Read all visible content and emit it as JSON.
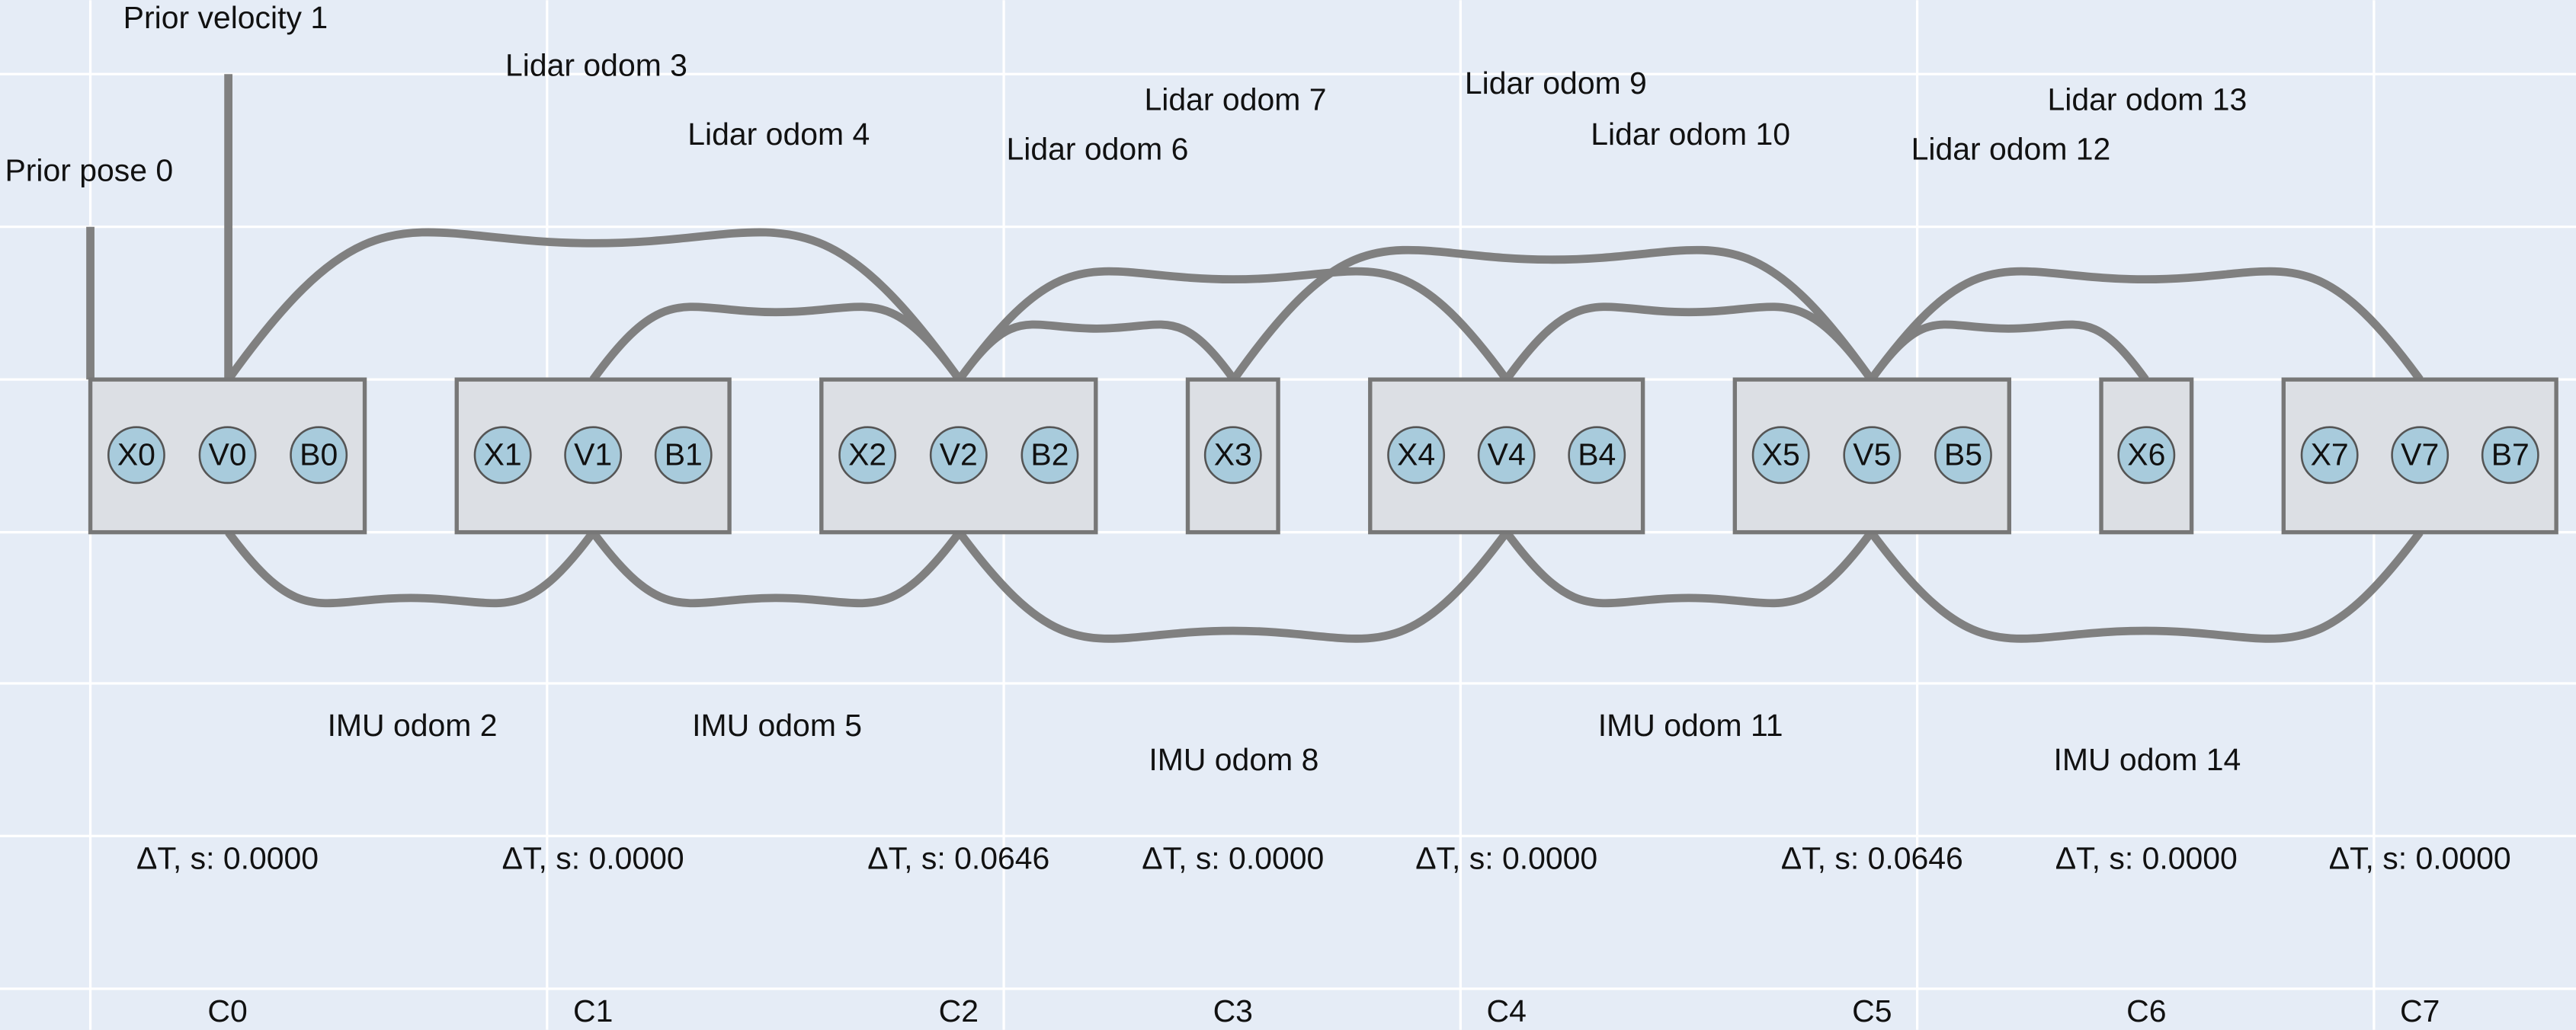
{
  "clusters": [
    {
      "label": "C0",
      "dt": "ΔT, s: 0.0000",
      "nodes": [
        "X0",
        "V0",
        "B0"
      ]
    },
    {
      "label": "C1",
      "dt": "ΔT, s: 0.0000",
      "nodes": [
        "X1",
        "V1",
        "B1"
      ]
    },
    {
      "label": "C2",
      "dt": "ΔT, s: 0.0646",
      "nodes": [
        "X2",
        "V2",
        "B2"
      ]
    },
    {
      "label": "C3",
      "dt": "ΔT, s: 0.0000",
      "nodes": [
        "X3"
      ]
    },
    {
      "label": "C4",
      "dt": "ΔT, s: 0.0000",
      "nodes": [
        "X4",
        "V4",
        "B4"
      ]
    },
    {
      "label": "C5",
      "dt": "ΔT, s: 0.0646",
      "nodes": [
        "X5",
        "V5",
        "B5"
      ]
    },
    {
      "label": "C6",
      "dt": "ΔT, s: 0.0000",
      "nodes": [
        "X6"
      ]
    },
    {
      "label": "C7",
      "dt": "ΔT, s: 0.0000",
      "nodes": [
        "X7",
        "V7",
        "B7"
      ]
    }
  ],
  "factors": [
    "Prior pose 0",
    "Prior velocity 1",
    "IMU odom 2",
    "Lidar odom 3",
    "Lidar odom 4",
    "IMU odom 5",
    "Lidar odom 6",
    "Lidar odom 7",
    "IMU odom 8",
    "Lidar odom 9",
    "Lidar odom 10",
    "IMU odom 11",
    "Lidar odom 12",
    "Lidar odom 13",
    "IMU odom 14"
  ]
}
